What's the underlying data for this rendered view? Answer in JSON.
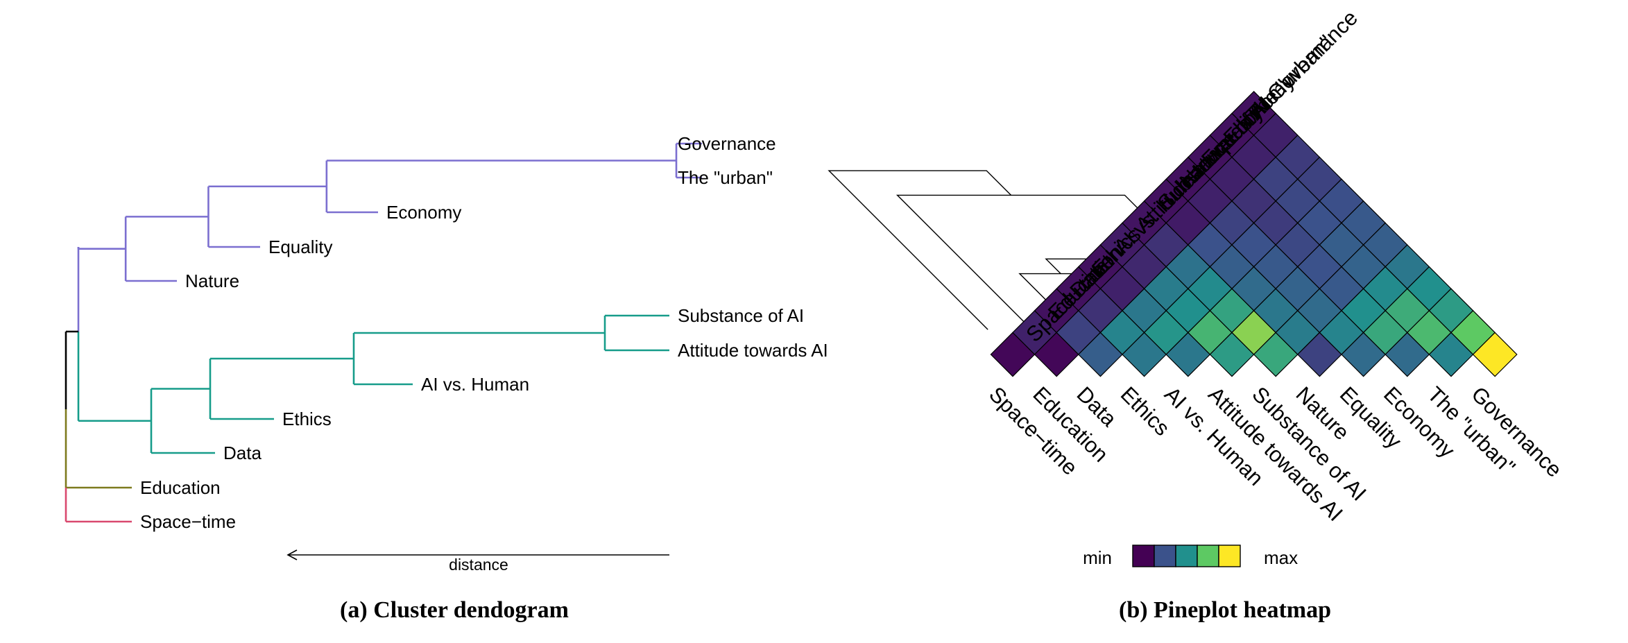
{
  "chart_data": [
    {
      "type": "dendrogram",
      "caption": "(a) Cluster dendogram",
      "axis_label": "distance",
      "leaves": [
        "Governance",
        "The \"urban\"",
        "Economy",
        "Equality",
        "Nature",
        "Substance of AI",
        "Attitude towards AI",
        "AI vs. Human",
        "Ethics",
        "Data",
        "Education",
        "Space−time"
      ],
      "clusters": [
        {
          "name": "",
          "color": "#7b6fd0",
          "members": [
            "Governance",
            "The \"urban\"",
            "Economy",
            "Equality",
            "Nature"
          ]
        },
        {
          "name": "",
          "color": "#169c8a",
          "members": [
            "Substance of AI",
            "Attitude towards AI",
            "AI vs. Human",
            "Ethics",
            "Data"
          ]
        },
        {
          "name": "",
          "color": "#7d7a1d",
          "members": [
            "Education"
          ]
        },
        {
          "name": "",
          "color": "#d9486e",
          "members": [
            "Space−time"
          ]
        }
      ],
      "merge_heights": [
        {
          "members": [
            "Governance",
            "The \"urban\""
          ],
          "height": 0.03
        },
        {
          "members": [
            "Substance of AI",
            "Attitude towards AI"
          ],
          "height": 0.11
        },
        {
          "members": [
            "Governance",
            "The \"urban\"",
            "Economy"
          ],
          "height": 0.58
        },
        {
          "members": [
            "Substance of AI",
            "Attitude towards AI",
            "AI vs. Human"
          ],
          "height": 0.52
        },
        {
          "members": [
            "Substance of AI",
            "Attitude towards AI",
            "AI vs. Human",
            "Ethics"
          ],
          "height": 0.74
        },
        {
          "members": [
            "Governance",
            "The \"urban\"",
            "Economy",
            "Equality"
          ],
          "height": 0.78
        },
        {
          "members": [
            "Substance of AI",
            "Attitude towards AI",
            "AI vs. Human",
            "Ethics",
            "Data"
          ],
          "height": 0.86
        },
        {
          "members": [
            "Governance",
            "The \"urban\"",
            "Economy",
            "Equality",
            "Nature"
          ],
          "height": 0.92
        },
        {
          "members": [
            "purple",
            "teal"
          ],
          "height": 0.98
        },
        {
          "members": [
            "purple",
            "teal",
            "Education"
          ],
          "height": 1.0
        },
        {
          "members": [
            "purple",
            "teal",
            "Education",
            "Space−time"
          ],
          "height": 1.0
        }
      ]
    },
    {
      "type": "heatmap",
      "caption": "(b) Pineplot heatmap",
      "labels": [
        "Space−time",
        "Education",
        "Data",
        "Ethics",
        "AI vs. Human",
        "Attitude towards AI",
        "Substance of AI",
        "Nature",
        "Equality",
        "Economy",
        "The \"urban\"",
        "Governance"
      ],
      "legend": {
        "min_label": "min",
        "max_label": "max",
        "colors": [
          "#440154",
          "#3b528b",
          "#21908d",
          "#5dc963",
          "#fde725"
        ]
      },
      "scale": "0 = min, 1 = max",
      "values": [
        [
          0.02,
          0.1,
          0.05,
          0.05,
          0.05,
          0.08,
          0.06,
          0.05,
          0.05,
          0.05,
          0.05,
          0.05
        ],
        [
          0.1,
          0.02,
          0.2,
          0.15,
          0.1,
          0.12,
          0.15,
          0.08,
          0.1,
          0.1,
          0.1,
          0.1
        ],
        [
          0.05,
          0.2,
          0.3,
          0.45,
          0.4,
          0.42,
          0.38,
          0.25,
          0.2,
          0.15,
          0.2,
          0.18
        ],
        [
          0.05,
          0.15,
          0.45,
          0.4,
          0.52,
          0.5,
          0.48,
          0.3,
          0.25,
          0.18,
          0.22,
          0.2
        ],
        [
          0.05,
          0.1,
          0.4,
          0.52,
          0.4,
          0.66,
          0.58,
          0.35,
          0.28,
          0.22,
          0.25,
          0.24
        ],
        [
          0.08,
          0.12,
          0.42,
          0.5,
          0.66,
          0.55,
          0.82,
          0.4,
          0.32,
          0.25,
          0.3,
          0.28
        ],
        [
          0.06,
          0.15,
          0.38,
          0.48,
          0.58,
          0.82,
          0.6,
          0.42,
          0.35,
          0.28,
          0.32,
          0.3
        ],
        [
          0.05,
          0.08,
          0.25,
          0.3,
          0.35,
          0.4,
          0.42,
          0.2,
          0.45,
          0.5,
          0.48,
          0.4
        ],
        [
          0.05,
          0.1,
          0.2,
          0.25,
          0.28,
          0.32,
          0.35,
          0.45,
          0.35,
          0.6,
          0.62,
          0.5
        ],
        [
          0.05,
          0.1,
          0.15,
          0.18,
          0.22,
          0.25,
          0.28,
          0.5,
          0.6,
          0.35,
          0.68,
          0.55
        ],
        [
          0.05,
          0.1,
          0.2,
          0.22,
          0.25,
          0.3,
          0.32,
          0.48,
          0.62,
          0.68,
          0.45,
          0.75
        ],
        [
          0.05,
          0.1,
          0.18,
          0.2,
          0.24,
          0.28,
          0.3,
          0.4,
          0.5,
          0.55,
          0.75,
          1.0
        ]
      ]
    }
  ]
}
